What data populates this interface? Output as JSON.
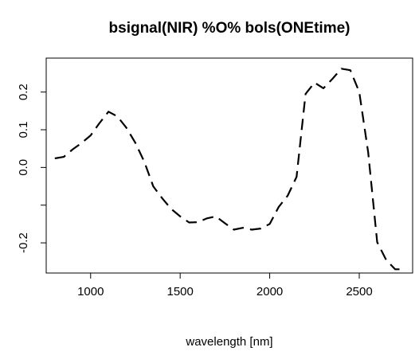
{
  "chart_data": {
    "type": "line",
    "title": "bsignal(NIR) %O% bols(ONEtime)",
    "xlabel": "wavelength [nm]",
    "ylabel": "",
    "xlim": [
      752,
      2798
    ],
    "ylim": [
      -0.28,
      0.29
    ],
    "x_ticks": [
      1000,
      1500,
      2000,
      2500
    ],
    "x_tick_labels": [
      "1000",
      "1500",
      "2000",
      "2500"
    ],
    "y_ticks": [
      -0.2,
      -0.1,
      0.0,
      0.1,
      0.2
    ],
    "y_tick_labels": [
      "-0.2",
      "",
      "0.0",
      "0.1",
      "0.2"
    ],
    "grid": false,
    "legend": "none",
    "line_style": "dashed",
    "series": [
      {
        "x": [
          800,
          850,
          900,
          950,
          1000,
          1050,
          1100,
          1150,
          1200,
          1250,
          1300,
          1350,
          1400,
          1450,
          1500,
          1550,
          1600,
          1650,
          1700,
          1750,
          1800,
          1850,
          1900,
          1950,
          2000,
          2050,
          2100,
          2150,
          2200,
          2250,
          2300,
          2350,
          2400,
          2450,
          2500,
          2550,
          2600,
          2650,
          2700,
          2750
        ],
        "y": [
          0.024,
          0.028,
          0.048,
          0.065,
          0.085,
          0.118,
          0.148,
          0.135,
          0.105,
          0.065,
          0.015,
          -0.05,
          -0.082,
          -0.11,
          -0.13,
          -0.146,
          -0.145,
          -0.135,
          -0.13,
          -0.148,
          -0.165,
          -0.16,
          -0.165,
          -0.162,
          -0.15,
          -0.105,
          -0.075,
          -0.025,
          0.195,
          0.225,
          0.21,
          0.235,
          0.262,
          0.258,
          0.2,
          0.04,
          -0.198,
          -0.245,
          -0.27,
          -0.27
        ]
      }
    ]
  }
}
